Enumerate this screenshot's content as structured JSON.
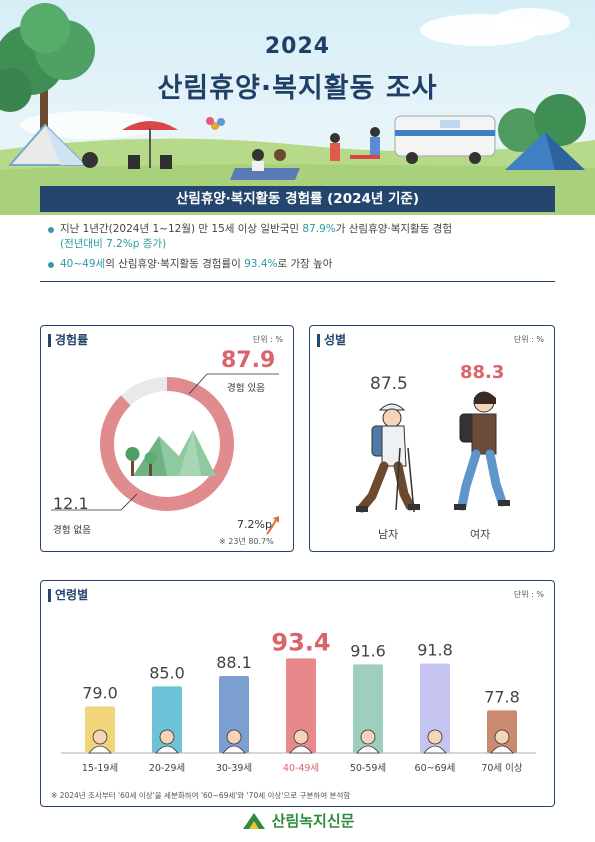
{
  "header": {
    "year": "2024",
    "title": "산림휴양·복지활동 조사"
  },
  "banner": "산림휴양·복지활동 경험률 (2024년 기준)",
  "bullets": {
    "b1_pre": "지난 1년간(2024년 1~12월) 만 15세 이상 일반국민 ",
    "b1_hl": "87.9%",
    "b1_post": "가 산림휴양·복지활동 경험",
    "b1_sub": "(전년대비 7.2%p 증가)",
    "b2_hl1": "40~49세",
    "b2_mid": "의 산림휴양·복지활동 경험률이 ",
    "b2_hl2": "93.4%",
    "b2_post": "로 가장 높아"
  },
  "experience": {
    "title": "경험률",
    "unit": "단위 : %",
    "yes_value": "87.9",
    "yes_label": "경험 있음",
    "no_value": "12.1",
    "no_label": "경험 없음",
    "change": "7.2%p",
    "note": "※ 23년 80.7%",
    "colors": {
      "yes": "#e08b8e",
      "no": "#e9e9e9"
    }
  },
  "gender": {
    "title": "성별",
    "unit": "단위 : %",
    "male_value": "87.5",
    "male_label": "남자",
    "female_value": "88.3",
    "female_label": "여자"
  },
  "age": {
    "title": "연령별",
    "unit": "단위 : %",
    "note": "※ 2024년 조사부터 '60세 이상'을 세분화하여 '60~69세'와 '70세 이상'으로 구분하여 분석함"
  },
  "chart_data": {
    "type": "bar",
    "categories": [
      "15-19세",
      "20-29세",
      "30-39세",
      "40-49세",
      "50-59세",
      "60~69세",
      "70세 이상"
    ],
    "values": [
      79.0,
      85.0,
      88.1,
      93.4,
      91.6,
      91.8,
      77.8
    ],
    "labels": [
      "79.0",
      "85.0",
      "88.1",
      "93.4",
      "91.6",
      "91.8",
      "77.8"
    ],
    "colors": [
      "#f1d57a",
      "#6cc3d8",
      "#7d9ed1",
      "#e9888b",
      "#9ccfbd",
      "#c5c4f0",
      "#c98a70"
    ],
    "highlight_index": 3,
    "highlight_color": "#d9646a"
  },
  "footer": {
    "brand": "산림녹지신문"
  }
}
